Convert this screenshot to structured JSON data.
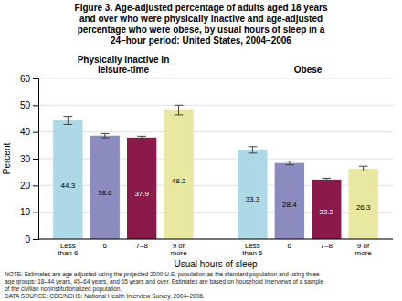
{
  "chart_data": {
    "type": "bar",
    "title": "Figure 3. Age-adjusted percentage of adults aged 18 years\nand over who were physically inactive and age-adjusted\npercentage who were obese, by usual hours of sleep in a\n24–hour period: United States, 2004–2006",
    "categories": [
      "Less\nthan 6",
      "6",
      "7–8",
      "9 or\nmore"
    ],
    "series": [
      {
        "name": "Physically inactive in\nleisure-time",
        "values": [
          44.3,
          38.6,
          37.9,
          48.2
        ],
        "errors": [
          1.5,
          0.8,
          0.5,
          1.8
        ]
      },
      {
        "name": "Obese",
        "values": [
          33.3,
          28.4,
          22.2,
          26.3
        ],
        "errors": [
          1.2,
          0.7,
          0.5,
          0.9
        ]
      }
    ],
    "colors": [
      "#add8e6",
      "#8b8bc0",
      "#8b1a4a",
      "#e8e8a0"
    ],
    "xlabel": "Usual hours of sleep",
    "ylabel": "Percent",
    "ylim": [
      0,
      60
    ],
    "yticks": [
      0,
      10,
      20,
      30,
      40,
      50,
      60
    ],
    "grid": true,
    "data_labels": true,
    "annotations": [
      "NOTE:  Estimates are age adjusted using the projected 2000 U.S. population as the standard population and using three",
      "age groups:  18–44 years, 45–64 years, and 65 years and over.  Estimates are based on household interviews of a sample",
      "of the civilian noninstitutionalized population.",
      "DATA SOURCE: CDC/NCHS: National Health Interview Survey, 2004–2006."
    ]
  }
}
